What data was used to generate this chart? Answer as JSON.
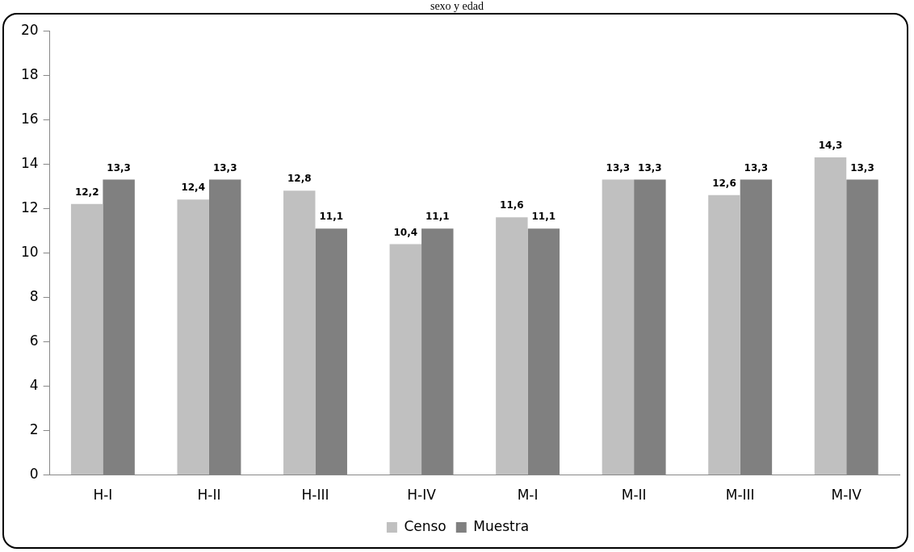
{
  "chart_data": {
    "type": "bar",
    "title": "sexo y edad",
    "categories": [
      "H-I",
      "H-II",
      "H-III",
      "H-IV",
      "M-I",
      "M-II",
      "M-III",
      "M-IV"
    ],
    "series": [
      {
        "name": "Censo",
        "color": "#c0c0c0",
        "values": [
          12.2,
          12.4,
          12.8,
          10.4,
          11.6,
          13.3,
          12.6,
          14.3
        ],
        "value_labels": [
          "12,2",
          "12,4",
          "12,8",
          "10,4",
          "11,6",
          "13,3",
          "12,6",
          "14,3"
        ]
      },
      {
        "name": "Muestra",
        "color": "#808080",
        "values": [
          13.3,
          13.3,
          11.1,
          11.1,
          11.1,
          13.3,
          13.3,
          13.3
        ],
        "value_labels": [
          "13,3",
          "13,3",
          "11,1",
          "11,1",
          "11,1",
          "13,3",
          "13,3",
          "13,3"
        ]
      }
    ],
    "ylim": [
      0,
      20
    ],
    "yticks": [
      0,
      2,
      4,
      6,
      8,
      10,
      12,
      14,
      16,
      18,
      20
    ],
    "grid": false,
    "legend": "bottom"
  }
}
